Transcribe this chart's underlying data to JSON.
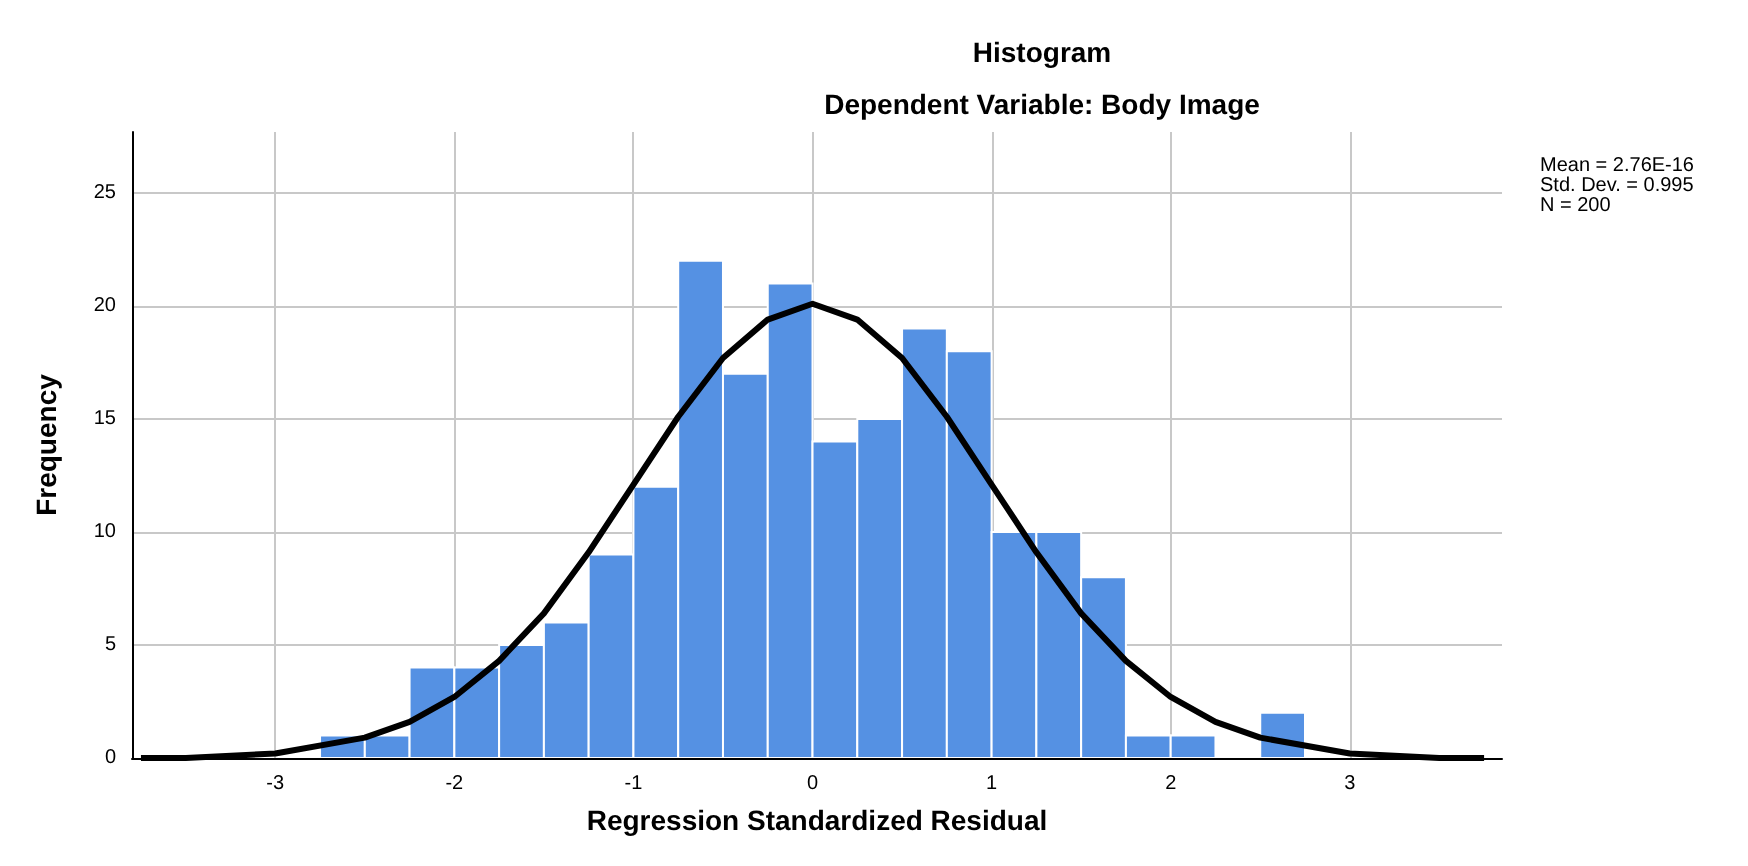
{
  "chart_data": {
    "type": "histogram",
    "title": "Histogram",
    "subtitle": "Dependent Variable: Body Image",
    "xlabel": "Regression Standardized Residual",
    "ylabel": "Frequency",
    "bins": [
      -2.75,
      -2.5,
      -2.25,
      -2,
      -1.75,
      -1.5,
      -1.25,
      -1,
      -0.75,
      -0.5,
      -0.25,
      0,
      0.25,
      0.5,
      0.75,
      1,
      1.25,
      1.5,
      1.75,
      2,
      2.25,
      2.5,
      2.75
    ],
    "values": [
      1,
      1,
      4,
      4,
      5,
      6,
      9,
      12,
      22,
      17,
      21,
      14,
      15,
      19,
      18,
      10,
      10,
      8,
      1,
      1,
      0,
      2
    ],
    "color": "#5591e3",
    "series": [
      {
        "type": "line",
        "color": "#000000",
        "marker": "none",
        "x": [
          -3.75,
          -3.5,
          -3,
          -2.5,
          -2.25,
          -2,
          -1.75,
          -1.5,
          -1.25,
          -1,
          -0.75,
          -0.5,
          -0.25,
          0,
          0.25,
          0.5,
          0.75,
          1,
          1.25,
          1.5,
          1.75,
          2,
          2.25,
          2.5,
          3,
          3.5,
          3.75
        ],
        "values": [
          0,
          0,
          0.2,
          0.9,
          1.6,
          2.7,
          4.3,
          6.4,
          9.1,
          12.1,
          15.1,
          17.7,
          19.4,
          20.1,
          19.4,
          17.7,
          15.1,
          12.1,
          9.1,
          6.4,
          4.3,
          2.7,
          1.6,
          0.9,
          0.2,
          0,
          0
        ]
      }
    ],
    "xlim": [
      -3.8,
      3.85
    ],
    "xticks": [
      -3,
      -2,
      -1,
      0,
      1,
      2,
      3
    ],
    "ylim": [
      0,
      27.7
    ],
    "yticks": [
      0,
      5,
      10,
      15,
      20,
      25
    ],
    "grid": true,
    "annotations": [
      "Mean = 2.76E-16",
      "Std. Dev. = 0.995",
      "N = 200"
    ]
  }
}
